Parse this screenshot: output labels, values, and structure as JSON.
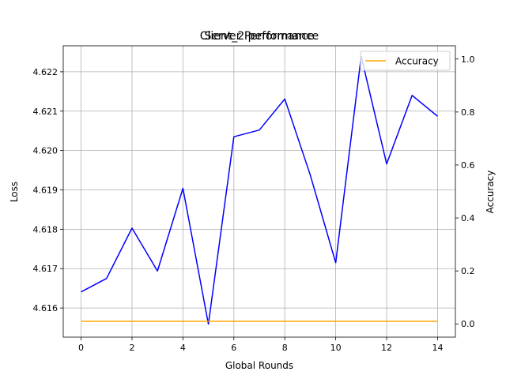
{
  "chart_data": {
    "type": "line",
    "titles": [
      "Server Performance",
      "Client_2 performance"
    ],
    "xlabel": "Global Rounds",
    "ylabel_left": "Loss",
    "ylabel_right": "Accuracy",
    "x": [
      0,
      1,
      2,
      3,
      4,
      5,
      6,
      7,
      8,
      9,
      10,
      11,
      12,
      13,
      14
    ],
    "xlim": [
      -0.7,
      14.7
    ],
    "ylim_left": [
      4.61526,
      4.62266
    ],
    "ylim_right": [
      -0.05,
      1.05
    ],
    "xticks": [
      0,
      2,
      4,
      6,
      8,
      10,
      12,
      14
    ],
    "yticks_left": [
      4.616,
      4.617,
      4.618,
      4.619,
      4.62,
      4.621,
      4.622
    ],
    "ytick_labels_left": [
      "4.616",
      "4.617",
      "4.618",
      "4.619",
      "4.620",
      "4.621",
      "4.622"
    ],
    "yticks_right": [
      0.0,
      0.2,
      0.4,
      0.6,
      0.8,
      1.0
    ],
    "ytick_labels_right": [
      "0.0",
      "0.2",
      "0.4",
      "0.6",
      "0.8",
      "1.0"
    ],
    "grid": true,
    "legend_position": "top-right",
    "series": [
      {
        "name": "",
        "axis": "left",
        "color": "#0000ff",
        "values": [
          4.61641,
          4.61675,
          4.61803,
          4.61694,
          4.61904,
          4.61559,
          4.62035,
          4.62052,
          4.62131,
          4.61938,
          4.61715,
          4.62239,
          4.61966,
          4.6214,
          4.62087
        ]
      },
      {
        "name": "Accuracy",
        "axis": "right",
        "color": "#ffa500",
        "values": [
          0.01,
          0.01,
          0.01,
          0.01,
          0.01,
          0.01,
          0.01,
          0.01,
          0.01,
          0.01,
          0.01,
          0.01,
          0.01,
          0.01,
          0.01
        ]
      }
    ]
  }
}
